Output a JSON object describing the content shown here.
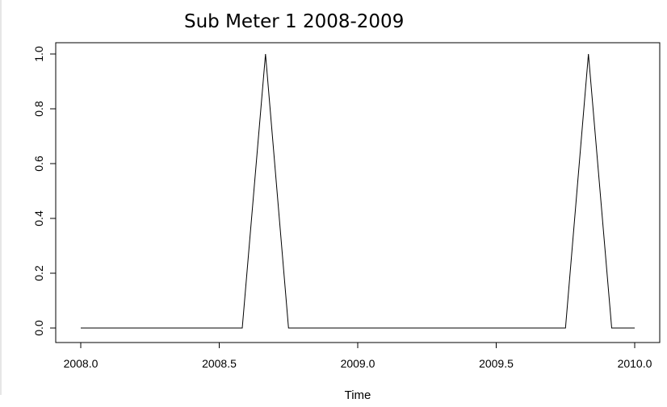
{
  "chart_data": {
    "type": "line",
    "title": "Sub Meter 1 2008-2009",
    "xlabel": "Time",
    "ylabel": "",
    "xlim": [
      2008.0,
      2010.0
    ],
    "ylim": [
      0.0,
      1.0
    ],
    "x_ticks": [
      "2008.0",
      "2008.5",
      "2009.0",
      "2009.5",
      "2010.0"
    ],
    "y_ticks": [
      "0.0",
      "0.2",
      "0.4",
      "0.6",
      "0.8",
      "1.0"
    ],
    "grid": false,
    "series": [
      {
        "color": "#000000",
        "x": [
          2008.0,
          2008.583,
          2008.667,
          2008.75,
          2009.75,
          2009.833,
          2009.917,
          2010.0
        ],
        "y": [
          0,
          0,
          1,
          0,
          0,
          1,
          0,
          0
        ]
      }
    ]
  }
}
